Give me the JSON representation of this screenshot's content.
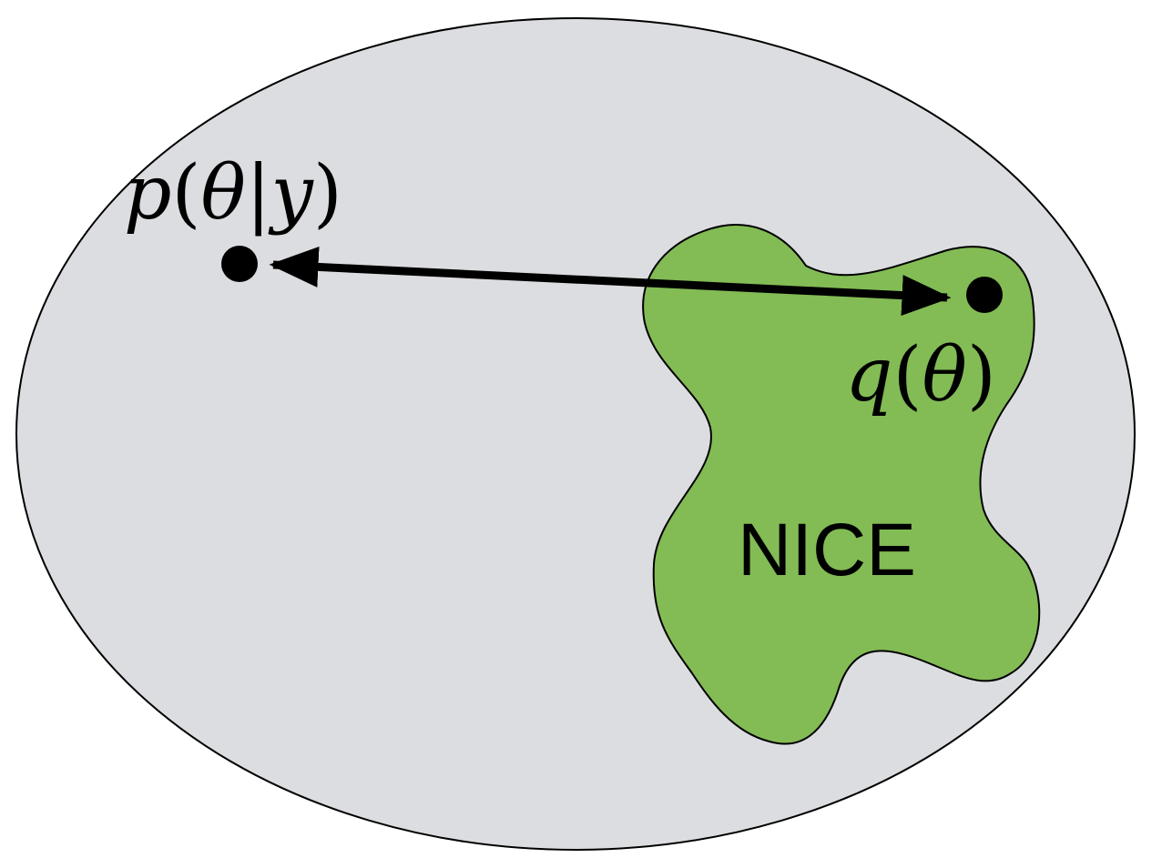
{
  "colors": {
    "background": "#ffffff",
    "outer_region": "#dcdde0",
    "nice_region": "#83bb55",
    "stroke": "#000000"
  },
  "labels": {
    "p_func": "p",
    "p_open": "(",
    "p_theta": "θ",
    "p_bar": "|",
    "p_y": "y",
    "p_close": ")",
    "q_func": "q",
    "q_open": "(",
    "q_theta": "θ",
    "q_close": ")",
    "nice": "NICE"
  }
}
